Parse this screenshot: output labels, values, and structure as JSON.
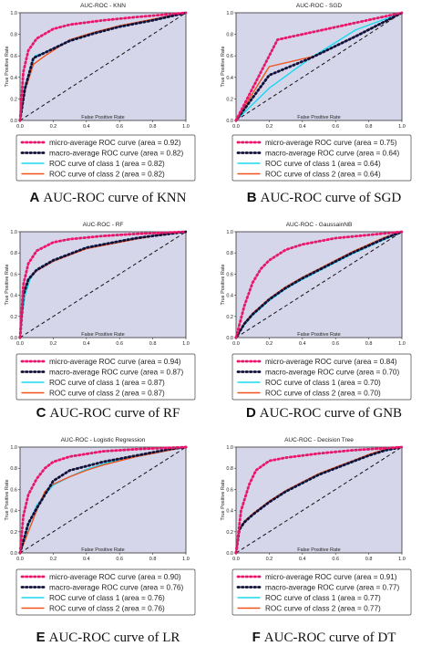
{
  "captions": [
    {
      "letter": "A",
      "text": "AUC-ROC curve of KNN"
    },
    {
      "letter": "B",
      "text": "AUC-ROC curve of SGD"
    },
    {
      "letter": "C",
      "text": "AUC-ROC curve of RF"
    },
    {
      "letter": "D",
      "text": "AUC-ROC curve of GNB"
    },
    {
      "letter": "E",
      "text": "AUC-ROC curve of LR"
    },
    {
      "letter": "F",
      "text": "AUC-ROC curve of DT"
    }
  ],
  "colors": {
    "micro": "#e8176b",
    "macro": "#10103a",
    "class1": "#18d8f0",
    "class2": "#f0521e",
    "diagonal": "#111111",
    "plot_bg": "#d6d6ea"
  },
  "chart_data": [
    {
      "type": "line",
      "title": "AUC-ROC - KNN",
      "xlabel": "False Positive Rate",
      "ylabel": "True Positive Rate",
      "xlim": [
        0,
        1
      ],
      "ylim": [
        0,
        1
      ],
      "xticks": [
        "0.0",
        "0.2",
        "0.4",
        "0.6",
        "0.8",
        "1.0"
      ],
      "yticks": [
        "0.0",
        "0.2",
        "0.4",
        "0.6",
        "0.8",
        "1.0"
      ],
      "legend_position": "below",
      "series": [
        {
          "name": "micro-average ROC curve (area = 0.92)",
          "style": "micro",
          "x": [
            0,
            0.02,
            0.05,
            0.1,
            0.2,
            0.3,
            0.5,
            0.7,
            1.0
          ],
          "y": [
            0,
            0.45,
            0.65,
            0.76,
            0.85,
            0.89,
            0.93,
            0.96,
            1.0
          ]
        },
        {
          "name": "macro-average ROC curve (area = 0.82)",
          "style": "macro",
          "x": [
            0,
            0.03,
            0.08,
            0.15,
            0.3,
            0.45,
            0.6,
            0.8,
            1.0
          ],
          "y": [
            0,
            0.3,
            0.58,
            0.63,
            0.74,
            0.81,
            0.87,
            0.93,
            1.0
          ]
        },
        {
          "name": "ROC curve of class 1 (area = 0.82)",
          "style": "class1",
          "x": [
            0,
            0.03,
            0.09,
            0.15,
            0.3,
            0.45,
            0.6,
            0.8,
            1.0
          ],
          "y": [
            0,
            0.32,
            0.6,
            0.63,
            0.74,
            0.82,
            0.87,
            0.93,
            1.0
          ]
        },
        {
          "name": "ROC curve of class 2 (area = 0.82)",
          "style": "class2",
          "x": [
            0,
            0.03,
            0.08,
            0.15,
            0.3,
            0.45,
            0.6,
            0.8,
            1.0
          ],
          "y": [
            0,
            0.28,
            0.52,
            0.6,
            0.75,
            0.82,
            0.88,
            0.94,
            1.0
          ]
        }
      ]
    },
    {
      "type": "line",
      "title": "AUC-ROC - SGD",
      "xlabel": "False Positive Rate",
      "ylabel": "True Positive Rate",
      "xlim": [
        0,
        1
      ],
      "ylim": [
        0,
        1
      ],
      "xticks": [
        "0.0",
        "0.2",
        "0.4",
        "0.6",
        "0.8",
        "1.0"
      ],
      "yticks": [
        "0.0",
        "0.2",
        "0.4",
        "0.6",
        "0.8",
        "1.0"
      ],
      "legend_position": "below",
      "series": [
        {
          "name": "micro-average ROC curve (area = 0.75)",
          "style": "micro",
          "x": [
            0,
            0.25,
            1.0
          ],
          "y": [
            0,
            0.75,
            1.0
          ]
        },
        {
          "name": "macro-average ROC curve (area = 0.64)",
          "style": "macro",
          "x": [
            0,
            0.2,
            0.45,
            0.72,
            1.0
          ],
          "y": [
            0,
            0.42,
            0.58,
            0.78,
            1.0
          ]
        },
        {
          "name": "ROC curve of class 1 (area = 0.64)",
          "style": "class1",
          "x": [
            0,
            0.2,
            0.45,
            0.72,
            1.0
          ],
          "y": [
            0,
            0.3,
            0.58,
            0.84,
            1.0
          ]
        },
        {
          "name": "ROC curve of class 2 (area = 0.64)",
          "style": "class2",
          "x": [
            0,
            0.2,
            0.48,
            1.0
          ],
          "y": [
            0,
            0.5,
            0.6,
            1.0
          ]
        }
      ]
    },
    {
      "type": "line",
      "title": "AUC-ROC - RF",
      "xlabel": "False Positive Rate",
      "ylabel": "True Positive Rate",
      "xlim": [
        0,
        1
      ],
      "ylim": [
        0,
        1
      ],
      "xticks": [
        "0.0",
        "0.2",
        "0.4",
        "0.6",
        "0.8",
        "1.0"
      ],
      "yticks": [
        "0.0",
        "0.2",
        "0.4",
        "0.6",
        "0.8",
        "1.0"
      ],
      "legend_position": "below",
      "series": [
        {
          "name": "micro-average ROC curve (area = 0.94)",
          "style": "micro",
          "x": [
            0,
            0.02,
            0.05,
            0.1,
            0.2,
            0.3,
            0.5,
            0.7,
            1.0
          ],
          "y": [
            0,
            0.5,
            0.7,
            0.82,
            0.9,
            0.93,
            0.96,
            0.98,
            1.0
          ]
        },
        {
          "name": "macro-average ROC curve (area = 0.87)",
          "style": "macro",
          "x": [
            0,
            0.02,
            0.05,
            0.1,
            0.2,
            0.3,
            0.4,
            0.5,
            0.6,
            0.7,
            0.8,
            0.9,
            1.0
          ],
          "y": [
            0,
            0.4,
            0.55,
            0.64,
            0.73,
            0.79,
            0.85,
            0.88,
            0.91,
            0.94,
            0.96,
            0.98,
            1.0
          ]
        },
        {
          "name": "ROC curve of class 1 (area = 0.87)",
          "style": "class1",
          "x": [
            0,
            0.01,
            0.03,
            0.06,
            0.1,
            0.2,
            0.3,
            0.4,
            0.5,
            0.6,
            0.7,
            0.8,
            0.9,
            1.0
          ],
          "y": [
            0,
            0.18,
            0.4,
            0.55,
            0.64,
            0.73,
            0.79,
            0.85,
            0.88,
            0.91,
            0.94,
            0.96,
            0.98,
            1.0
          ]
        },
        {
          "name": "ROC curve of class 2 (area = 0.87)",
          "style": "class2",
          "x": [
            0,
            0.02,
            0.05,
            0.1,
            0.2,
            0.3,
            0.4,
            0.5,
            0.6,
            0.7,
            0.8,
            0.9,
            1.0
          ],
          "y": [
            0,
            0.45,
            0.55,
            0.63,
            0.72,
            0.78,
            0.84,
            0.87,
            0.9,
            0.93,
            0.96,
            0.98,
            1.0
          ]
        }
      ]
    },
    {
      "type": "line",
      "title": "AUC-ROC - GaussainNB",
      "xlabel": "False Positive Rate",
      "ylabel": "True Positive Rate",
      "xlim": [
        0,
        1
      ],
      "ylim": [
        0,
        1
      ],
      "xticks": [
        "0.0",
        "0.2",
        "0.4",
        "0.6",
        "0.8",
        "1.0"
      ],
      "yticks": [
        "0.0",
        "0.2",
        "0.4",
        "0.6",
        "0.8",
        "1.0"
      ],
      "legend_position": "below",
      "series": [
        {
          "name": "micro-average ROC curve (area = 0.84)",
          "style": "micro",
          "x": [
            0,
            0.05,
            0.1,
            0.15,
            0.2,
            0.3,
            0.4,
            0.6,
            0.8,
            1.0
          ],
          "y": [
            0,
            0.3,
            0.52,
            0.65,
            0.73,
            0.83,
            0.88,
            0.94,
            0.97,
            1.0
          ]
        },
        {
          "name": "macro-average ROC curve (area = 0.70)",
          "style": "macro",
          "x": [
            0,
            0.05,
            0.1,
            0.2,
            0.3,
            0.4,
            0.5,
            0.6,
            0.7,
            0.8,
            0.9,
            1.0
          ],
          "y": [
            0,
            0.13,
            0.22,
            0.36,
            0.47,
            0.56,
            0.64,
            0.72,
            0.8,
            0.87,
            0.94,
            1.0
          ]
        },
        {
          "name": "ROC curve of class 1 (area = 0.70)",
          "style": "class1",
          "x": [
            0,
            0.05,
            0.1,
            0.2,
            0.3,
            0.4,
            0.5,
            0.6,
            0.7,
            0.8,
            0.9,
            1.0
          ],
          "y": [
            0,
            0.12,
            0.21,
            0.35,
            0.46,
            0.55,
            0.63,
            0.71,
            0.79,
            0.86,
            0.93,
            1.0
          ]
        },
        {
          "name": "ROC curve of class 2 (area = 0.70)",
          "style": "class2",
          "x": [
            0,
            0.05,
            0.1,
            0.2,
            0.3,
            0.4,
            0.5,
            0.6,
            0.7,
            0.8,
            0.9,
            1.0
          ],
          "y": [
            0,
            0.14,
            0.23,
            0.37,
            0.48,
            0.57,
            0.65,
            0.73,
            0.81,
            0.88,
            0.95,
            1.0
          ]
        }
      ]
    },
    {
      "type": "line",
      "title": "AUC-ROC - Logistic Regression",
      "xlabel": "False Positive Rate",
      "ylabel": "True Positive Rate",
      "xlim": [
        0,
        1
      ],
      "ylim": [
        0,
        1
      ],
      "xticks": [
        "0.0",
        "0.2",
        "0.4",
        "0.6",
        "0.8",
        "1.0"
      ],
      "yticks": [
        "0.0",
        "0.2",
        "0.4",
        "0.6",
        "0.8",
        "1.0"
      ],
      "legend_position": "below",
      "series": [
        {
          "name": "micro-average ROC curve (area = 0.90)",
          "style": "micro",
          "x": [
            0,
            0.02,
            0.05,
            0.1,
            0.15,
            0.2,
            0.3,
            0.5,
            0.7,
            1.0
          ],
          "y": [
            0,
            0.35,
            0.55,
            0.7,
            0.8,
            0.86,
            0.91,
            0.96,
            0.98,
            1.0
          ]
        },
        {
          "name": "macro-average ROC curve (area = 0.76)",
          "style": "macro",
          "x": [
            0,
            0.05,
            0.1,
            0.2,
            0.3,
            0.4,
            0.5,
            0.6,
            0.7,
            0.8,
            0.9,
            1.0
          ],
          "y": [
            0,
            0.28,
            0.42,
            0.68,
            0.78,
            0.82,
            0.86,
            0.89,
            0.92,
            0.95,
            0.98,
            1.0
          ]
        },
        {
          "name": "ROC curve of class 1 (area = 0.76)",
          "style": "class1",
          "x": [
            0,
            0.03,
            0.06,
            0.1,
            0.15,
            0.2,
            0.3,
            0.4,
            0.5,
            0.6,
            0.7,
            0.8,
            0.9,
            1.0
          ],
          "y": [
            0,
            0.15,
            0.3,
            0.45,
            0.55,
            0.64,
            0.72,
            0.79,
            0.84,
            0.88,
            0.91,
            0.94,
            0.97,
            1.0
          ]
        },
        {
          "name": "ROC curve of class 2 (area = 0.76)",
          "style": "class2",
          "x": [
            0,
            0.05,
            0.1,
            0.15,
            0.2,
            0.3,
            0.4,
            0.5,
            0.6,
            0.7,
            0.8,
            0.9,
            1.0
          ],
          "y": [
            0,
            0.2,
            0.4,
            0.58,
            0.65,
            0.72,
            0.78,
            0.83,
            0.87,
            0.91,
            0.94,
            0.97,
            1.0
          ]
        }
      ]
    },
    {
      "type": "line",
      "title": "AUC-ROC - Decision Tree",
      "xlabel": "False Positive Rate",
      "ylabel": "True Positive Rate",
      "xlim": [
        0,
        1
      ],
      "ylim": [
        0,
        1
      ],
      "xticks": [
        "0.0",
        "0.2",
        "0.4",
        "0.6",
        "0.8",
        "1.0"
      ],
      "yticks": [
        "0.0",
        "0.2",
        "0.4",
        "0.6",
        "0.8",
        "1.0"
      ],
      "legend_position": "below",
      "series": [
        {
          "name": "micro-average ROC curve (area = 0.91)",
          "style": "micro",
          "x": [
            0,
            0.03,
            0.08,
            0.12,
            0.2,
            0.3,
            0.5,
            0.7,
            1.0
          ],
          "y": [
            0,
            0.4,
            0.65,
            0.78,
            0.87,
            0.9,
            0.94,
            0.97,
            1.0
          ]
        },
        {
          "name": "macro-average ROC curve (area = 0.77)",
          "style": "macro",
          "x": [
            0,
            0.02,
            0.05,
            0.1,
            0.2,
            0.3,
            0.4,
            0.5,
            0.6,
            0.7,
            0.8,
            0.9,
            1.0
          ],
          "y": [
            0,
            0.22,
            0.29,
            0.36,
            0.48,
            0.58,
            0.66,
            0.74,
            0.8,
            0.86,
            0.92,
            0.97,
            1.0
          ]
        },
        {
          "name": "ROC curve of class 1 (area = 0.77)",
          "style": "class1",
          "x": [
            0,
            0.02,
            0.05,
            0.1,
            0.2,
            0.3,
            0.4,
            0.5,
            0.6,
            0.7,
            0.8,
            0.9,
            1.0
          ],
          "y": [
            0,
            0.22,
            0.29,
            0.36,
            0.48,
            0.58,
            0.66,
            0.74,
            0.8,
            0.86,
            0.92,
            0.97,
            1.0
          ]
        },
        {
          "name": "ROC curve of class 2 (area = 0.77)",
          "style": "class2",
          "x": [
            0,
            0.02,
            0.05,
            0.1,
            0.2,
            0.3,
            0.4,
            0.5,
            0.6,
            0.7,
            0.8,
            0.9,
            1.0
          ],
          "y": [
            0,
            0.23,
            0.3,
            0.37,
            0.49,
            0.59,
            0.67,
            0.75,
            0.81,
            0.87,
            0.93,
            0.98,
            1.0
          ]
        }
      ]
    }
  ]
}
